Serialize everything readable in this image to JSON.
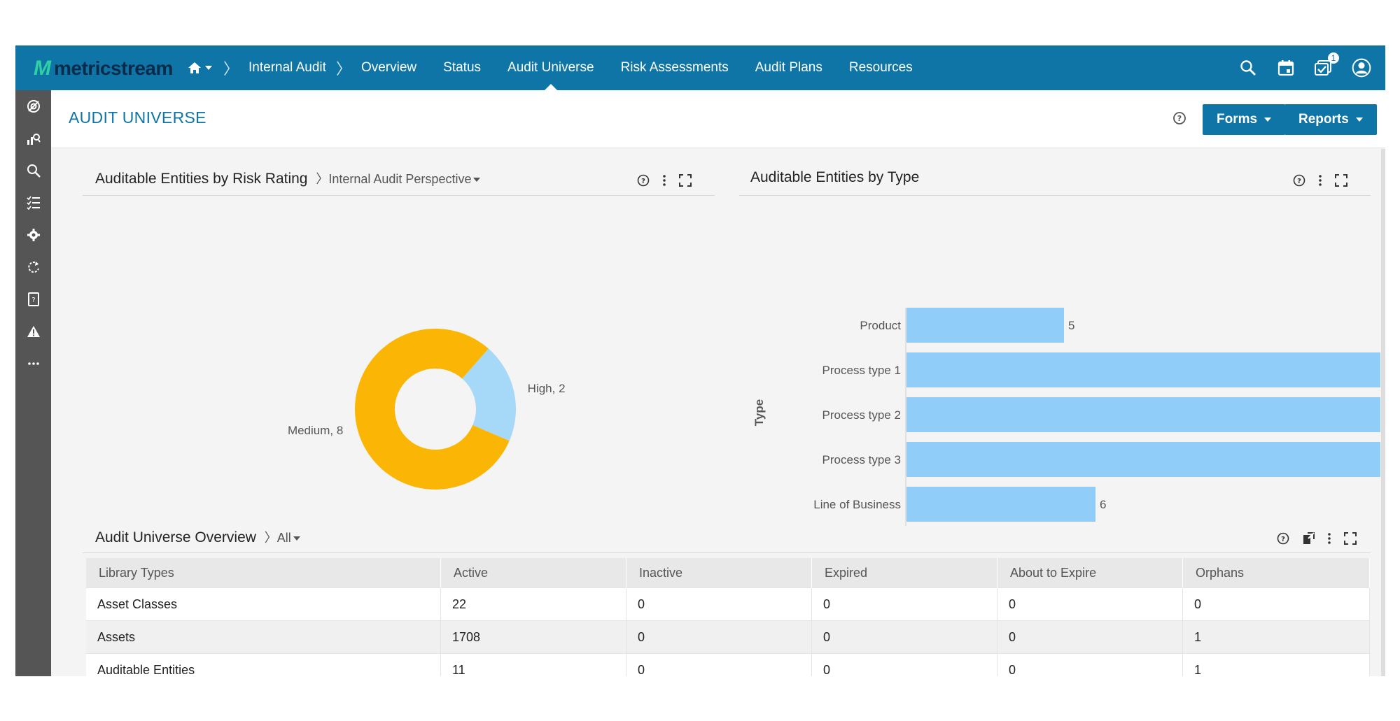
{
  "brand": {
    "mark": "M",
    "name": "metricstream"
  },
  "nav": {
    "module": "Internal Audit",
    "items": [
      "Overview",
      "Status",
      "Audit Universe",
      "Risk Assessments",
      "Audit Plans",
      "Resources"
    ],
    "active": "Audit Universe"
  },
  "notifications": {
    "count": "1"
  },
  "page": {
    "title": "AUDIT UNIVERSE",
    "forms_label": "Forms",
    "reports_label": "Reports"
  },
  "risk_panel": {
    "title": "Auditable Entities by Risk Rating",
    "perspective": "Internal Audit Perspective"
  },
  "type_panel": {
    "title": "Auditable Entities by Type",
    "axis_label": "Type"
  },
  "overview_panel": {
    "title": "Audit Universe Overview",
    "filter": "All"
  },
  "chart_data": [
    {
      "type": "pie",
      "donut": true,
      "slices": [
        {
          "label": "Medium",
          "value": 8,
          "display": "Medium, 8",
          "color": "#fbb605"
        },
        {
          "label": "High",
          "value": 2,
          "display": "High, 2",
          "color": "#a6d8f7"
        }
      ]
    },
    {
      "type": "bar",
      "orientation": "horizontal",
      "ylabel": "Type",
      "categories": [
        "Product",
        "Process type 1",
        "Process type 2",
        "Process type 3",
        "Line of Business"
      ],
      "values": [
        5,
        15.6,
        15.6,
        15.6,
        6
      ],
      "value_labels": [
        "5",
        "",
        "",
        "",
        "6"
      ],
      "color": "#90cdf9"
    }
  ],
  "table": {
    "headers": [
      "Library Types",
      "Active",
      "Inactive",
      "Expired",
      "About to Expire",
      "Orphans"
    ],
    "rows": [
      [
        "Asset Classes",
        "22",
        "0",
        "0",
        "0",
        "0"
      ],
      [
        "Assets",
        "1708",
        "0",
        "0",
        "0",
        "1"
      ],
      [
        "Auditable Entities",
        "11",
        "0",
        "0",
        "0",
        "1"
      ]
    ]
  }
}
